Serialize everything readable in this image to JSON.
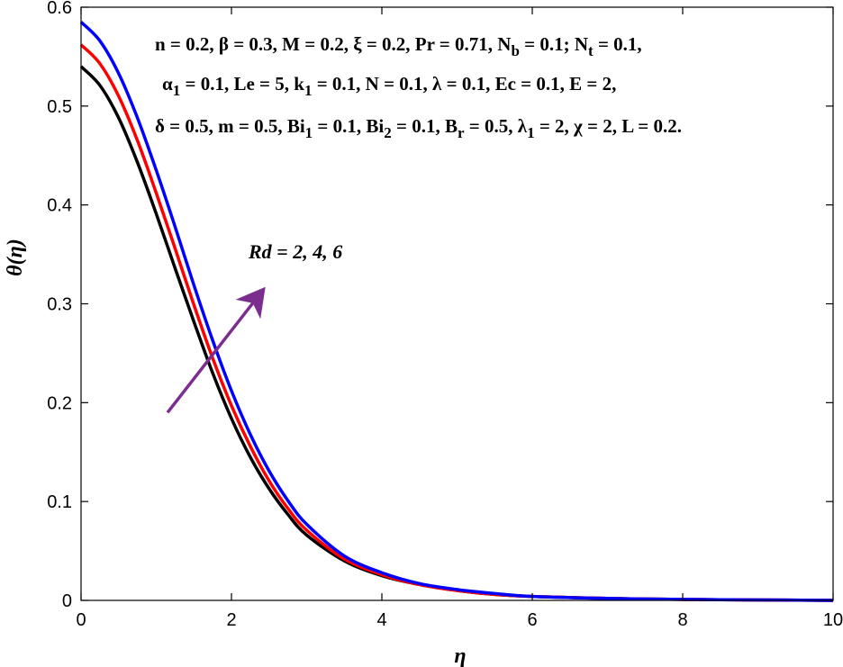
{
  "chart_data": {
    "type": "line",
    "xlabel": "η",
    "ylabel": "θ(η)",
    "xlim": [
      0,
      10
    ],
    "ylim": [
      0,
      0.6
    ],
    "xticks": [
      "0",
      "2",
      "4",
      "6",
      "8",
      "10"
    ],
    "yticks": [
      "0",
      "0.1",
      "0.2",
      "0.3",
      "0.4",
      "0.5",
      "0.6"
    ],
    "grid": false,
    "legend": null,
    "x": [
      0,
      0.25,
      0.5,
      0.75,
      1,
      1.25,
      1.5,
      1.75,
      2,
      2.25,
      2.5,
      2.75,
      3,
      3.5,
      4,
      4.5,
      5,
      5.5,
      6,
      7,
      8,
      9,
      10
    ],
    "series": [
      {
        "color": "#000000",
        "values": [
          0.54,
          0.521,
          0.488,
          0.443,
          0.391,
          0.336,
          0.282,
          0.23,
          0.184,
          0.145,
          0.113,
          0.087,
          0.066,
          0.04,
          0.025,
          0.016,
          0.01,
          0.006,
          0.004,
          0.002,
          0.001,
          0.0005,
          0.0
        ]
      },
      {
        "color": "#ff0000",
        "values": [
          0.562,
          0.543,
          0.51,
          0.465,
          0.412,
          0.356,
          0.299,
          0.245,
          0.197,
          0.156,
          0.121,
          0.093,
          0.071,
          0.042,
          0.026,
          0.016,
          0.01,
          0.006,
          0.004,
          0.002,
          0.001,
          0.0005,
          0.0
        ]
      },
      {
        "color": "#0000ff",
        "values": [
          0.585,
          0.566,
          0.533,
          0.488,
          0.435,
          0.378,
          0.319,
          0.263,
          0.212,
          0.168,
          0.131,
          0.101,
          0.077,
          0.045,
          0.028,
          0.017,
          0.011,
          0.007,
          0.004,
          0.002,
          0.001,
          0.0005,
          0.0
        ]
      }
    ],
    "annotations": {
      "params_line1": "n = 0.2, β = 0.3, M = 0.2, ξ = 0.2,  Pr = 0.71, N_b = 0.1; N_t = 0.1,",
      "params_line2": "α_1 = 0.1, Le = 5, k_1 = 0.1, N = 0.1, λ = 0.1, Ec = 0.1, E = 2,",
      "params_line3": "δ = 0.5, m = 0.5, Bi_1 = 0.1, Bi_2 = 0.1, B_r = 0.5, λ_1 = 2, χ = 2, L = 0.2.",
      "arrow_label": "Rd = 2, 4, 6",
      "arrow_color": "#7b2e8e",
      "arrow_from": [
        1.15,
        0.19
      ],
      "arrow_to": [
        2.4,
        0.312
      ]
    }
  }
}
